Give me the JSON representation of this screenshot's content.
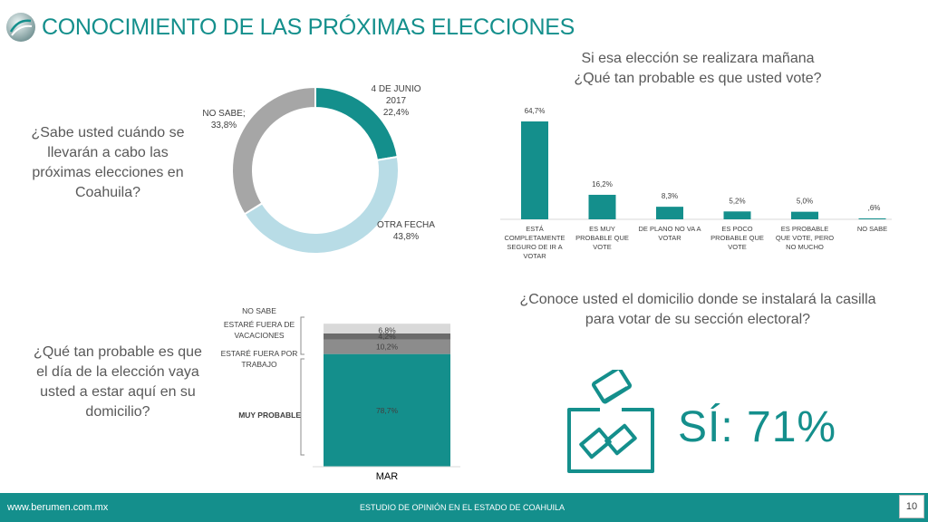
{
  "header": {
    "title": "CONOCIMIENTO DE LAS PRÓXIMAS ELECCIONES"
  },
  "questions": {
    "q1": "¿Sabe usted cuándo se llevarán a cabo las próximas elecciones en Coahuila?",
    "q2_line1": "Si esa elección se realizara mañana",
    "q2_line2": "¿Qué tan probable es que usted vote?",
    "q3": "¿Qué tan probable es que el día de la elección vaya usted a estar aquí en su domicilio?",
    "q4": "¿Conoce usted el domicilio donde se instalará la casilla para votar de su sección electoral?"
  },
  "result": {
    "text": "SÍ:  71%",
    "icon": "ballot-box-icon"
  },
  "footer": {
    "site": "www.berumen.com.mx",
    "study": "ESTUDIO DE OPINIÓN EN EL ESTADO DE COAHUILA",
    "page": "10"
  },
  "colors": {
    "accent": "#148f8c",
    "light_blue": "#b8dce6",
    "gray": "#a6a6a6"
  },
  "chart_data": [
    {
      "type": "pie",
      "donut": true,
      "slices": [
        {
          "label": "4 DE JUNIO 2017",
          "value": 22.4,
          "display": "22,4%",
          "color": "#148f8c"
        },
        {
          "label": "OTRA FECHA",
          "value": 43.8,
          "display": "43,8%",
          "color": "#b8dce6"
        },
        {
          "label": "NO SABE",
          "value": 33.8,
          "display": "33,8%",
          "color": "#a6a6a6"
        }
      ]
    },
    {
      "type": "bar",
      "categories": [
        "ESTÁ COMPLETAMENTE SEGURO DE IR A VOTAR",
        "ES MUY PROBABLE QUE VOTE",
        "DE PLANO NO VA A VOTAR",
        "ES POCO PROBABLE QUE VOTE",
        "ES PROBABLE QUE VOTE, PERO NO MUCHO",
        "NO SABE"
      ],
      "values": [
        64.7,
        16.2,
        8.3,
        5.2,
        5.0,
        0.6
      ],
      "data_labels": [
        "64,7%",
        "16,2%",
        "8,3%",
        "5,2%",
        "5,0%",
        ",6%"
      ],
      "color": "#148f8c"
    },
    {
      "type": "bar",
      "stacked": true,
      "categories": [
        "MAR"
      ],
      "series": [
        {
          "name": "MUY PROBABLE",
          "values": [
            78.7
          ],
          "display": "78,7%",
          "color": "#148f8c"
        },
        {
          "name": "ESTARÉ FUERA POR TRABAJO",
          "values": [
            10.2
          ],
          "display": "10,2%",
          "color": "#8c8c8c"
        },
        {
          "name": "ESTARÉ FUERA DE VACACIONES",
          "values": [
            4.2
          ],
          "display": "4,2%",
          "color": "#6b6b6b"
        },
        {
          "name": "NO SABE",
          "values": [
            6.8
          ],
          "display": "6,8%",
          "color": "#d9d9d9"
        }
      ]
    }
  ]
}
